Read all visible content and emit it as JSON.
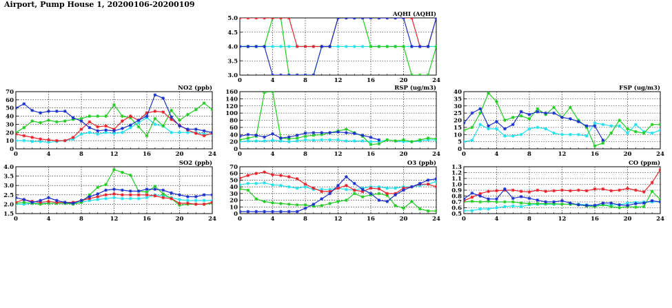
{
  "page": {
    "title": "Airport, Pump House 1, 20200106-20200109"
  },
  "colors": {
    "red": "#e8202a",
    "green": "#22cc22",
    "blue": "#1a2fcc",
    "cyan": "#1ee0ee"
  },
  "chart_data": [
    {
      "id": "aqhi",
      "type": "line",
      "title": "AQHI (AQHI)",
      "xlim": [
        0,
        24
      ],
      "ylim": [
        3.0,
        5.0
      ],
      "xticks": [
        "0",
        "4",
        "8",
        "12",
        "16",
        "20",
        "24"
      ],
      "yticks": [
        "3.0",
        "3.5",
        "4.0",
        "4.5",
        "5.0"
      ],
      "x": [
        0,
        1,
        2,
        3,
        4,
        5,
        6,
        7,
        8,
        9,
        10,
        11,
        12,
        13,
        14,
        15,
        16,
        17,
        18,
        19,
        20,
        21,
        22,
        23,
        24
      ],
      "series": [
        {
          "color": "red",
          "values": [
            5,
            5,
            5,
            5,
            5,
            5,
            5,
            4,
            4,
            4,
            4,
            4,
            5,
            5,
            5,
            5,
            5,
            5,
            5,
            5,
            5,
            5,
            4,
            4,
            5
          ]
        },
        {
          "color": "green",
          "values": [
            4,
            4,
            4,
            4,
            5,
            5,
            3,
            3,
            3,
            3,
            4,
            4,
            5,
            5,
            5,
            5,
            4,
            4,
            4,
            4,
            4,
            3,
            3,
            3,
            4
          ]
        },
        {
          "color": "blue",
          "values": [
            4,
            4,
            4,
            4,
            3,
            3,
            3,
            3,
            3,
            3,
            4,
            4,
            5,
            5,
            5,
            5,
            5,
            5,
            5,
            5,
            5,
            4,
            4,
            4,
            5
          ]
        },
        {
          "color": "cyan",
          "values": [
            4,
            4,
            4,
            4,
            4,
            4,
            4,
            4,
            4,
            4,
            4,
            4,
            4,
            4,
            4,
            4,
            4,
            4,
            4,
            4,
            4,
            4,
            4,
            4,
            4
          ]
        }
      ]
    },
    {
      "id": "no2",
      "type": "line",
      "title": "NO2 (ppb)",
      "xlim": [
        0,
        24
      ],
      "ylim": [
        0,
        70
      ],
      "xticks": [
        "0",
        "4",
        "8",
        "12",
        "16",
        "20",
        "24"
      ],
      "yticks": [
        "0",
        "10",
        "20",
        "30",
        "40",
        "50",
        "60",
        "70"
      ],
      "x": [
        0,
        1,
        2,
        3,
        4,
        5,
        6,
        7,
        8,
        9,
        10,
        11,
        12,
        13,
        14,
        15,
        16,
        17,
        18,
        19,
        20,
        21,
        22,
        23,
        24
      ],
      "series": [
        {
          "color": "red",
          "values": [
            18,
            16,
            14,
            12,
            11,
            10,
            10,
            14,
            24,
            33,
            27,
            28,
            24,
            34,
            40,
            35,
            44,
            46,
            45,
            36,
            29,
            23,
            19,
            16,
            19
          ]
        },
        {
          "color": "green",
          "values": [
            20,
            26,
            34,
            32,
            35,
            33,
            34,
            36,
            37,
            40,
            40,
            40,
            54,
            40,
            38,
            27,
            16,
            37,
            28,
            47,
            35,
            42,
            48,
            56,
            48
          ]
        },
        {
          "color": "blue",
          "values": [
            50,
            55,
            47,
            44,
            46,
            46,
            46,
            38,
            34,
            26,
            22,
            23,
            22,
            25,
            29,
            35,
            40,
            66,
            62,
            39,
            28,
            24,
            24,
            22,
            20
          ]
        },
        {
          "color": "cyan",
          "values": [
            10,
            10,
            9,
            9,
            8,
            9,
            10,
            12,
            18,
            20,
            18,
            20,
            19,
            20,
            26,
            32,
            38,
            30,
            28,
            20,
            20,
            20,
            20,
            18,
            18
          ]
        }
      ]
    },
    {
      "id": "rsp",
      "type": "line",
      "title": "RSP (ug/m3)",
      "xlim": [
        0,
        24
      ],
      "ylim": [
        0,
        160
      ],
      "xticks": [
        "0",
        "4",
        "8",
        "12",
        "16",
        "20",
        "24"
      ],
      "yticks": [
        "0",
        "20",
        "40",
        "60",
        "80",
        "100",
        "120",
        "140",
        "160"
      ],
      "x": [
        0,
        1,
        2,
        3,
        4,
        5,
        6,
        7,
        8,
        9,
        10,
        11,
        12,
        13,
        14,
        15,
        16,
        17,
        18,
        19,
        20,
        21,
        22,
        23,
        24
      ],
      "series": [
        {
          "color": "red",
          "values": [
            null,
            null,
            null,
            null,
            null,
            null,
            null,
            null,
            null,
            null,
            null,
            null,
            null,
            null,
            null,
            null,
            null,
            null,
            null,
            null,
            null,
            null,
            null,
            null,
            null
          ]
        },
        {
          "color": "green",
          "values": [
            25,
            30,
            35,
            158,
            160,
            30,
            28,
            30,
            35,
            38,
            40,
            45,
            50,
            55,
            45,
            35,
            12,
            14,
            25,
            22,
            25,
            20,
            25,
            30,
            28
          ]
        },
        {
          "color": "blue",
          "values": [
            35,
            40,
            38,
            33,
            42,
            30,
            33,
            38,
            44,
            45,
            45,
            45,
            47,
            45,
            43,
            38,
            32,
            25,
            null,
            null,
            null,
            null,
            null,
            null,
            null
          ]
        },
        {
          "color": "cyan",
          "values": [
            20,
            22,
            22,
            22,
            24,
            22,
            20,
            22,
            25,
            24,
            25,
            25,
            25,
            22,
            22,
            22,
            20,
            20,
            25,
            22,
            20,
            20,
            22,
            25,
            25
          ]
        }
      ]
    },
    {
      "id": "fsp",
      "type": "line",
      "title": "FSP (ug/m3)",
      "xlim": [
        0,
        24
      ],
      "ylim": [
        0,
        40
      ],
      "xticks": [
        "0",
        "4",
        "8",
        "12",
        "16",
        "20",
        "24"
      ],
      "yticks": [
        "0",
        "5",
        "10",
        "15",
        "20",
        "25",
        "30",
        "35",
        "40"
      ],
      "x": [
        0,
        1,
        2,
        3,
        4,
        5,
        6,
        7,
        8,
        9,
        10,
        11,
        12,
        13,
        14,
        15,
        16,
        17,
        18,
        19,
        20,
        21,
        22,
        23,
        24
      ],
      "series": [
        {
          "color": "red",
          "values": [
            null,
            null,
            null,
            null,
            null,
            null,
            null,
            null,
            null,
            null,
            null,
            null,
            null,
            null,
            null,
            null,
            null,
            null,
            null,
            null,
            null,
            null,
            null,
            null,
            null
          ]
        },
        {
          "color": "green",
          "values": [
            13,
            15,
            25,
            39,
            33,
            20,
            22,
            23,
            21,
            28,
            24,
            29,
            22,
            29,
            20,
            15,
            2,
            4,
            11,
            20,
            14,
            12,
            11,
            17,
            17
          ]
        },
        {
          "color": "blue",
          "values": [
            18,
            25,
            28,
            16,
            19,
            14,
            17,
            26,
            24,
            26,
            25,
            25,
            22,
            21,
            19,
            16,
            16,
            6,
            null,
            null,
            null,
            null,
            null,
            null,
            null
          ]
        },
        {
          "color": "cyan",
          "values": [
            5,
            6,
            17,
            14,
            14,
            9,
            9,
            10,
            14,
            15,
            14,
            11,
            10,
            10,
            10,
            9,
            18,
            17,
            16,
            16,
            11,
            17,
            12,
            11,
            13
          ]
        }
      ]
    },
    {
      "id": "so2",
      "type": "line",
      "title": "SO2 (ppb)",
      "xlim": [
        0,
        24
      ],
      "ylim": [
        1.5,
        4.0
      ],
      "xticks": [
        "0",
        "4",
        "8",
        "12",
        "16",
        "20",
        "24"
      ],
      "yticks": [
        "1.5",
        "2.0",
        "2.5",
        "3.0",
        "3.5",
        "4.0"
      ],
      "x": [
        0,
        1,
        2,
        3,
        4,
        5,
        6,
        7,
        8,
        9,
        10,
        11,
        12,
        13,
        14,
        15,
        16,
        17,
        18,
        19,
        20,
        21,
        22,
        23,
        24
      ],
      "series": [
        {
          "color": "red",
          "values": [
            2.1,
            2.25,
            2.15,
            2.1,
            2.15,
            2.1,
            2.1,
            2.1,
            2.2,
            2.3,
            2.4,
            2.5,
            2.55,
            2.5,
            2.5,
            2.5,
            2.5,
            2.45,
            2.35,
            2.3,
            2.05,
            2.05,
            2.0,
            2.0,
            2.1
          ]
        },
        {
          "color": "green",
          "values": [
            2.05,
            2.1,
            2.05,
            2.0,
            2.05,
            2.05,
            2.05,
            2.0,
            2.1,
            2.5,
            2.9,
            3.05,
            3.85,
            3.7,
            3.55,
            2.7,
            2.65,
            2.95,
            2.55,
            2.3,
            1.95,
            2.0,
            2.0,
            2.0,
            2.05
          ]
        },
        {
          "color": "blue",
          "values": [
            2.35,
            2.25,
            2.1,
            2.2,
            2.35,
            2.2,
            2.1,
            2.05,
            2.2,
            2.4,
            2.55,
            2.75,
            2.8,
            2.75,
            2.7,
            2.7,
            2.8,
            2.8,
            2.75,
            2.6,
            2.5,
            2.4,
            2.4,
            2.5,
            2.5
          ]
        },
        {
          "color": "cyan",
          "values": [
            2.0,
            2.0,
            2.05,
            2.05,
            2.05,
            2.05,
            2.05,
            2.05,
            2.1,
            2.2,
            2.25,
            2.3,
            2.35,
            2.3,
            2.3,
            2.3,
            2.35,
            2.5,
            2.45,
            2.35,
            2.25,
            2.2,
            2.2,
            2.2,
            2.2
          ]
        }
      ]
    },
    {
      "id": "o3",
      "type": "line",
      "title": "O3 (ppb)",
      "xlim": [
        0,
        24
      ],
      "ylim": [
        0,
        70
      ],
      "xticks": [
        "0",
        "4",
        "8",
        "12",
        "16",
        "20",
        "24"
      ],
      "yticks": [
        "0",
        "10",
        "20",
        "30",
        "40",
        "50",
        "60",
        "70"
      ],
      "x": [
        0,
        1,
        2,
        3,
        4,
        5,
        6,
        7,
        8,
        9,
        10,
        11,
        12,
        13,
        14,
        15,
        16,
        17,
        18,
        19,
        20,
        21,
        22,
        23,
        24
      ],
      "series": [
        {
          "color": "red",
          "values": [
            53,
            57,
            60,
            62,
            58,
            57,
            55,
            52,
            44,
            38,
            33,
            33,
            38,
            42,
            35,
            33,
            38,
            37,
            30,
            30,
            38,
            40,
            44,
            44,
            40
          ]
        },
        {
          "color": "green",
          "values": [
            37,
            35,
            22,
            18,
            16,
            15,
            14,
            13,
            13,
            11,
            12,
            15,
            18,
            20,
            30,
            25,
            28,
            30,
            27,
            12,
            8,
            18,
            7,
            4,
            4
          ]
        },
        {
          "color": "blue",
          "values": [
            3,
            3,
            3,
            3,
            3,
            3,
            3,
            3,
            8,
            14,
            22,
            30,
            42,
            55,
            45,
            36,
            30,
            20,
            18,
            28,
            35,
            40,
            45,
            50,
            52
          ]
        },
        {
          "color": "cyan",
          "values": [
            43,
            45,
            45,
            46,
            43,
            42,
            40,
            38,
            40,
            36,
            36,
            36,
            38,
            36,
            35,
            38,
            40,
            40,
            38,
            38,
            40,
            40,
            42,
            44,
            48
          ]
        }
      ]
    },
    {
      "id": "co",
      "type": "line",
      "title": "CO (ppm)",
      "xlim": [
        0,
        24
      ],
      "ylim": [
        0.5,
        1.3
      ],
      "xticks": [
        "0",
        "4",
        "8",
        "12",
        "16",
        "20",
        "24"
      ],
      "yticks": [
        "0.5",
        "0.6",
        "0.7",
        "0.8",
        "0.9",
        "1.0",
        "1.1",
        "1.2",
        "1.3"
      ],
      "x": [
        0,
        1,
        2,
        3,
        4,
        5,
        6,
        7,
        8,
        9,
        10,
        11,
        12,
        13,
        14,
        15,
        16,
        17,
        18,
        19,
        20,
        21,
        22,
        23,
        24
      ],
      "series": [
        {
          "color": "red",
          "values": [
            0.72,
            0.78,
            0.84,
            0.88,
            0.89,
            0.9,
            0.9,
            0.88,
            0.87,
            0.9,
            0.88,
            0.89,
            0.9,
            0.89,
            0.9,
            0.89,
            0.92,
            0.92,
            0.89,
            0.9,
            0.93,
            0.9,
            0.87,
            1.03,
            1.25
          ]
        },
        {
          "color": "green",
          "values": [
            0.7,
            0.71,
            0.7,
            0.71,
            0.7,
            0.7,
            0.7,
            0.68,
            0.67,
            0.67,
            0.67,
            0.67,
            0.66,
            0.66,
            0.65,
            0.63,
            0.62,
            0.65,
            0.62,
            0.6,
            0.62,
            0.61,
            0.62,
            0.88,
            0.74
          ]
        },
        {
          "color": "blue",
          "values": [
            0.75,
            0.85,
            0.8,
            0.75,
            0.75,
            0.92,
            0.76,
            0.79,
            0.76,
            0.73,
            0.7,
            0.7,
            0.72,
            0.68,
            0.65,
            0.64,
            0.64,
            0.68,
            0.68,
            0.65,
            0.64,
            0.67,
            0.68,
            0.72,
            0.7
          ]
        },
        {
          "color": "cyan",
          "values": [
            0.55,
            0.55,
            0.58,
            0.58,
            0.6,
            0.62,
            0.63,
            0.62,
            0.65,
            0.66,
            0.66,
            0.66,
            0.66,
            0.66,
            0.66,
            0.65,
            0.64,
            0.65,
            0.65,
            0.65,
            0.68,
            0.69,
            0.7,
            0.7,
            0.7
          ]
        }
      ]
    }
  ]
}
